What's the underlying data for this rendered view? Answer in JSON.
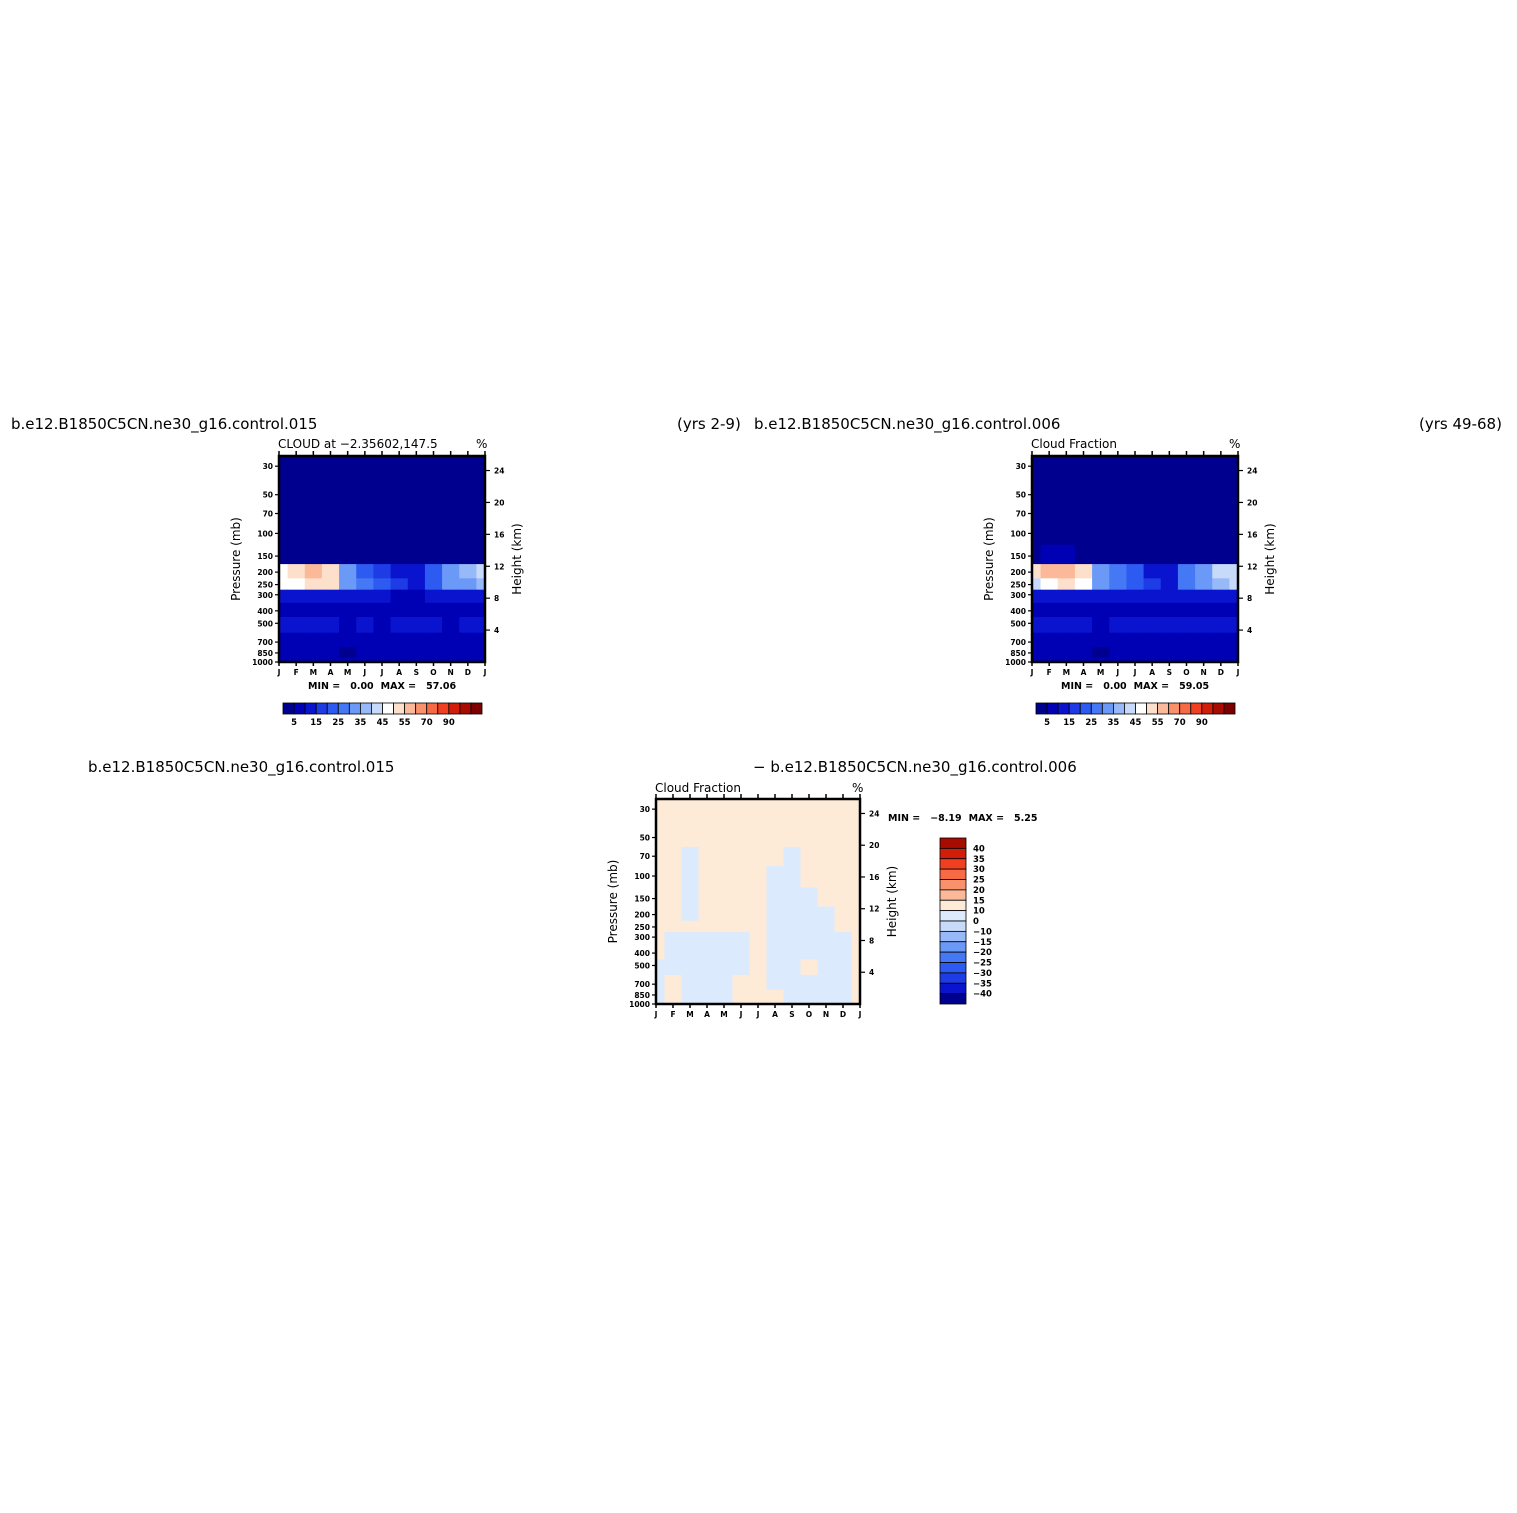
{
  "headers": {
    "p1_case": "b.e12.B1850C5CN.ne30_g16.control.015",
    "p1_years": "(yrs  2-9)",
    "p2_case": "b.e12.B1850C5CN.ne30_g16.control.006",
    "p2_years": "(yrs  49-68)",
    "p3_case_a": "b.e12.B1850C5CN.ne30_g16.control.015",
    "p3_case_b": "−  b.e12.B1850C5CN.ne30_g16.control.006"
  },
  "chart_data": [
    {
      "type": "heatmap",
      "id": "p1",
      "title": "CLOUD at −2.35602,147.5",
      "units": "%",
      "x_ticks": [
        "J",
        "F",
        "M",
        "A",
        "M",
        "J",
        "J",
        "A",
        "S",
        "O",
        "N",
        "D",
        "J"
      ],
      "ylabel": "Pressure  (mb)",
      "y2label": "Height  (km)",
      "y_ticks": [
        30,
        50,
        70,
        100,
        150,
        200,
        250,
        300,
        400,
        500,
        700,
        850,
        1000
      ],
      "y2_ticks": [
        24,
        20,
        16,
        12,
        8,
        4
      ],
      "y_scale": "log",
      "min_label": "MIN =",
      "min_value": "0.00",
      "max_label": "MAX =",
      "max_value": "57.06",
      "levels": [
        0,
        5,
        10,
        15,
        20,
        25,
        30,
        35,
        40,
        45,
        50,
        55,
        60,
        70,
        80,
        90,
        100
      ],
      "colorbar_labels": [
        "5",
        "15",
        "25",
        "35",
        "45",
        "55",
        "70",
        "90"
      ],
      "colorbar_orientation": "horizontal",
      "grid": [
        [
          1,
          1,
          1,
          1,
          1,
          1,
          1,
          1,
          1,
          1,
          1,
          1,
          1
        ],
        [
          1,
          1,
          1,
          1,
          1,
          1,
          1,
          1,
          1,
          1,
          1,
          1,
          1
        ],
        [
          1,
          1,
          1,
          1,
          1,
          1,
          1,
          1,
          1,
          1,
          1,
          1,
          1
        ],
        [
          2,
          2,
          2,
          2,
          2,
          1,
          1,
          1,
          1,
          1,
          2,
          2,
          2
        ],
        [
          4,
          4,
          4,
          3,
          3,
          3,
          3,
          2,
          2,
          2,
          3,
          4,
          4
        ],
        [
          48,
          50,
          55,
          52,
          30,
          24,
          18,
          12,
          10,
          22,
          32,
          38,
          40
        ],
        [
          46,
          48,
          53,
          50,
          32,
          28,
          24,
          16,
          14,
          24,
          30,
          34,
          38
        ],
        [
          12,
          12,
          14,
          14,
          12,
          14,
          12,
          8,
          8,
          10,
          12,
          12,
          12
        ],
        [
          8,
          8,
          8,
          6,
          6,
          6,
          8,
          6,
          6,
          5,
          6,
          6,
          8
        ],
        [
          10,
          10,
          12,
          10,
          8,
          12,
          9,
          10,
          10,
          10,
          9,
          10,
          10
        ],
        [
          8,
          8,
          8,
          6,
          6,
          8,
          8,
          8,
          6,
          8,
          8,
          6,
          8
        ],
        [
          6,
          6,
          6,
          6,
          4,
          6,
          6,
          6,
          6,
          6,
          6,
          5,
          6
        ],
        [
          8,
          8,
          8,
          8,
          8,
          8,
          8,
          8,
          8,
          8,
          8,
          8,
          8
        ]
      ]
    },
    {
      "type": "heatmap",
      "id": "p2",
      "title": "Cloud  Fraction",
      "units": "%",
      "x_ticks": [
        "J",
        "F",
        "M",
        "A",
        "M",
        "J",
        "J",
        "A",
        "S",
        "O",
        "N",
        "D",
        "J"
      ],
      "ylabel": "Pressure  (mb)",
      "y2label": "Height  (km)",
      "y_ticks": [
        30,
        50,
        70,
        100,
        150,
        200,
        250,
        300,
        400,
        500,
        700,
        850,
        1000
      ],
      "y2_ticks": [
        24,
        20,
        16,
        12,
        8,
        4
      ],
      "y_scale": "log",
      "min_label": "MIN =",
      "min_value": "0.00",
      "max_label": "MAX =",
      "max_value": "59.05",
      "levels": [
        0,
        5,
        10,
        15,
        20,
        25,
        30,
        35,
        40,
        45,
        50,
        55,
        60,
        70,
        80,
        90,
        100
      ],
      "colorbar_labels": [
        "5",
        "15",
        "25",
        "35",
        "45",
        "55",
        "70",
        "90"
      ],
      "colorbar_orientation": "horizontal",
      "grid": [
        [
          1,
          1,
          1,
          1,
          1,
          1,
          1,
          1,
          1,
          1,
          1,
          1,
          1
        ],
        [
          1,
          1,
          1,
          1,
          1,
          1,
          1,
          1,
          1,
          1,
          1,
          1,
          1
        ],
        [
          1,
          1,
          1,
          1,
          1,
          1,
          1,
          1,
          1,
          1,
          1,
          1,
          1
        ],
        [
          2,
          2,
          2,
          2,
          2,
          1,
          1,
          1,
          1,
          1,
          2,
          2,
          2
        ],
        [
          4,
          5,
          5,
          4,
          3,
          3,
          3,
          2,
          2,
          3,
          3,
          4,
          4
        ],
        [
          50,
          56,
          59,
          52,
          34,
          26,
          20,
          14,
          12,
          26,
          34,
          40,
          42
        ],
        [
          44,
          48,
          52,
          48,
          32,
          28,
          24,
          16,
          14,
          26,
          32,
          36,
          40
        ],
        [
          14,
          14,
          14,
          14,
          12,
          12,
          12,
          10,
          10,
          10,
          12,
          12,
          12
        ],
        [
          8,
          8,
          8,
          8,
          6,
          8,
          8,
          8,
          6,
          8,
          8,
          6,
          8
        ],
        [
          10,
          10,
          10,
          10,
          8,
          10,
          12,
          10,
          10,
          10,
          10,
          10,
          10
        ],
        [
          8,
          8,
          8,
          6,
          6,
          8,
          8,
          8,
          8,
          8,
          8,
          8,
          8
        ],
        [
          6,
          6,
          6,
          6,
          4,
          6,
          6,
          6,
          6,
          6,
          6,
          5,
          6
        ],
        [
          8,
          8,
          8,
          8,
          8,
          8,
          8,
          8,
          8,
          8,
          8,
          8,
          8
        ]
      ]
    },
    {
      "type": "heatmap",
      "id": "p3",
      "title": "Cloud  Fraction",
      "units": "%",
      "x_ticks": [
        "J",
        "F",
        "M",
        "A",
        "M",
        "J",
        "J",
        "A",
        "S",
        "O",
        "N",
        "D",
        "J"
      ],
      "ylabel": "Pressure  (mb)",
      "y2label": "Height  (km)",
      "y_ticks": [
        30,
        50,
        70,
        100,
        150,
        200,
        250,
        300,
        400,
        500,
        700,
        850,
        1000
      ],
      "y2_ticks": [
        24,
        20,
        16,
        12,
        8,
        4
      ],
      "y_scale": "log",
      "min_label": "MIN =",
      "min_value": "−8.19",
      "max_label": "MAX =",
      "max_value": "5.25",
      "levels": [
        -45,
        -40,
        -35,
        -30,
        -25,
        -20,
        -15,
        -10,
        -5,
        0,
        5,
        10,
        15,
        20,
        25,
        30,
        35,
        40,
        45
      ],
      "colorbar_labels": [
        "40",
        "35",
        "30",
        "25",
        "20",
        "15",
        "10",
        "0",
        "−10",
        "−15",
        "−20",
        "−25",
        "−30",
        "−35",
        "−40"
      ],
      "colorbar_orientation": "vertical",
      "grid": [
        [
          1,
          1,
          1,
          1,
          1,
          1,
          1,
          1,
          1,
          1,
          1,
          1,
          1
        ],
        [
          1,
          1,
          1,
          1,
          1,
          1,
          1,
          1,
          1,
          1,
          1,
          1,
          1
        ],
        [
          1,
          1,
          -1,
          1,
          1,
          1,
          1,
          1,
          -1,
          1,
          1,
          1,
          1
        ],
        [
          1,
          1,
          -1,
          1,
          1,
          1,
          1,
          -1,
          -1,
          1,
          1,
          1,
          1
        ],
        [
          1,
          1,
          -1,
          1,
          1,
          1,
          1,
          -1,
          -1,
          -1,
          1,
          1,
          1
        ],
        [
          1,
          1,
          -1,
          1,
          1,
          1,
          1,
          -1,
          -1,
          -1,
          -1,
          1,
          1
        ],
        [
          1,
          1,
          1,
          1,
          1,
          1,
          1,
          -1,
          -1,
          -1,
          -1,
          1,
          1
        ],
        [
          1,
          -1,
          -1,
          -1,
          -1,
          -1,
          1,
          -1,
          -1,
          -1,
          -1,
          -1,
          1
        ],
        [
          1,
          -1,
          -1,
          -1,
          -1,
          -1,
          1,
          -1,
          -1,
          -1,
          -1,
          -1,
          1
        ],
        [
          -1,
          -1,
          -1,
          -1,
          -1,
          -1,
          1,
          -1,
          -1,
          1,
          -1,
          -1,
          1
        ],
        [
          -1,
          1,
          -1,
          -1,
          -1,
          1,
          1,
          -1,
          -1,
          -1,
          -1,
          -1,
          1
        ],
        [
          -1,
          1,
          -1,
          -1,
          -1,
          1,
          1,
          1,
          -1,
          -1,
          -1,
          -1,
          1
        ],
        [
          -1,
          1,
          -1,
          -1,
          -1,
          1,
          1,
          1,
          -1,
          -1,
          -1,
          -1,
          1
        ]
      ]
    }
  ],
  "colors": {
    "abs_palette": [
      "#00008f",
      "#0000b4",
      "#0a14cf",
      "#1e3ce6",
      "#2d5af0",
      "#4478f5",
      "#6b99f7",
      "#98b9f8",
      "#c8dafa",
      "#ffffff",
      "#fde0cb",
      "#fbb999",
      "#f9916b",
      "#f66b45",
      "#f04021",
      "#d11e0a",
      "#a80b00",
      "#7d0000"
    ],
    "diff_palette": [
      "#00008f",
      "#0a14cf",
      "#1e3ce6",
      "#2d5af0",
      "#4478f5",
      "#6b99f7",
      "#98b9f8",
      "#c8dafa",
      "#dbeafd",
      "#fdebd7",
      "#fbb999",
      "#f9916b",
      "#f66b45",
      "#f04021",
      "#d11e0a",
      "#a80b00",
      "#7d0000"
    ]
  }
}
